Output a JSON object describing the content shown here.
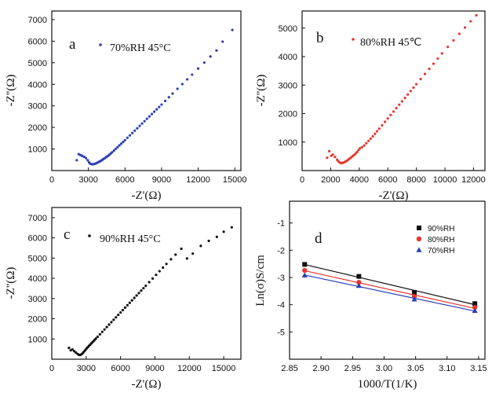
{
  "chart_data": [
    {
      "panel_label": "a",
      "type": "scatter",
      "condition": "70%RH 45°C",
      "color": "#2b3fb5",
      "xlabel": "-Z'(Ω)",
      "ylabel": "-Z''(Ω)",
      "xlim": [
        0,
        15500
      ],
      "ylim": [
        0,
        7400
      ],
      "xticks": [
        0,
        3000,
        6000,
        9000,
        12000,
        15000
      ],
      "xtick_labels": [
        "0",
        "3000",
        "6000",
        "9000",
        "12000",
        "15000"
      ],
      "yticks": [
        1000,
        2000,
        3000,
        4000,
        5000,
        6000,
        7000
      ],
      "ytick_labels": [
        "1000",
        "2000",
        "3000",
        "4000",
        "5000",
        "6000",
        "7000"
      ],
      "x": [
        2050,
        2200,
        2350,
        2500,
        2650,
        2800,
        2950,
        3050,
        3150,
        3250,
        3350,
        3450,
        3550,
        3650,
        3750,
        3850,
        3950,
        4050,
        4150,
        4250,
        4350,
        4450,
        4550,
        4650,
        4750,
        4850,
        4950,
        5100,
        5250,
        5400,
        5550,
        5700,
        5850,
        6000,
        6200,
        6400,
        6600,
        6800,
        7000,
        7200,
        7400,
        7600,
        7800,
        8000,
        8200,
        8400,
        8600,
        8800,
        9000,
        9300,
        9600,
        9900,
        10300,
        10700,
        11100,
        11500,
        12000,
        12500,
        13000,
        13500,
        14000,
        14800
      ],
      "y": [
        480,
        760,
        720,
        680,
        640,
        580,
        480,
        380,
        320,
        300,
        290,
        300,
        320,
        340,
        370,
        400,
        430,
        460,
        500,
        540,
        580,
        620,
        660,
        700,
        750,
        800,
        850,
        930,
        1010,
        1090,
        1170,
        1250,
        1330,
        1410,
        1520,
        1630,
        1740,
        1850,
        1960,
        2070,
        2180,
        2290,
        2400,
        2510,
        2620,
        2730,
        2840,
        2950,
        3060,
        3230,
        3400,
        3570,
        3790,
        4010,
        4230,
        4450,
        4730,
        5010,
        5290,
        5570,
        5980,
        6520
      ]
    },
    {
      "panel_label": "b",
      "type": "scatter",
      "condition": "80%RH 45℃",
      "color": "#e8362e",
      "xlabel": "-Z'(Ω)",
      "ylabel": "-Z''(Ω)",
      "xlim": [
        0,
        12800
      ],
      "ylim": [
        0,
        5600
      ],
      "xticks": [
        0,
        2000,
        4000,
        6000,
        8000,
        10000,
        12000
      ],
      "xtick_labels": [
        "0",
        "2000",
        "4000",
        "6000",
        "8000",
        "10000",
        "12000"
      ],
      "yticks": [
        1000,
        2000,
        3000,
        4000,
        5000
      ],
      "ytick_labels": [
        "1000",
        "2000",
        "3000",
        "4000",
        "5000"
      ],
      "x": [
        1750,
        1900,
        2050,
        2150,
        2300,
        2450,
        2550,
        2650,
        2750,
        2850,
        2950,
        3050,
        3150,
        3250,
        3350,
        3450,
        3550,
        3650,
        3750,
        3850,
        3950,
        4050,
        4200,
        4350,
        4500,
        4650,
        4800,
        4950,
        5100,
        5250,
        5400,
        5600,
        5800,
        6000,
        6200,
        6400,
        6600,
        6800,
        7000,
        7200,
        7400,
        7600,
        7800,
        8000,
        8300,
        8600,
        8900,
        9200,
        9500,
        9800,
        10200,
        10600,
        11000,
        11400,
        11800,
        12200
      ],
      "y": [
        450,
        680,
        520,
        560,
        480,
        380,
        320,
        280,
        260,
        270,
        290,
        320,
        350,
        390,
        430,
        470,
        510,
        550,
        600,
        650,
        720,
        780,
        820,
        880,
        960,
        1040,
        1120,
        1200,
        1290,
        1380,
        1470,
        1590,
        1710,
        1830,
        1950,
        2070,
        2190,
        2310,
        2430,
        2550,
        2670,
        2790,
        2910,
        3030,
        3210,
        3390,
        3570,
        3750,
        3930,
        4110,
        4340,
        4570,
        4800,
        5020,
        5240,
        5450
      ]
    },
    {
      "panel_label": "c",
      "type": "scatter",
      "condition": "90%RH 45°C",
      "color": "#111111",
      "xlabel": "-Z'(Ω)",
      "ylabel": "-Z''(Ω)",
      "xlim": [
        0,
        16500
      ],
      "ylim": [
        0,
        7500
      ],
      "xticks": [
        0,
        3000,
        6000,
        9000,
        12000,
        15000
      ],
      "xtick_labels": [
        "0",
        "3000",
        "6000",
        "9000",
        "12000",
        "15000"
      ],
      "yticks": [
        1000,
        2000,
        3000,
        4000,
        5000,
        6000,
        7000
      ],
      "ytick_labels": [
        "1000",
        "2000",
        "3000",
        "4000",
        "5000",
        "6000",
        "7000"
      ],
      "x": [
        1500,
        1650,
        1800,
        1950,
        2100,
        2250,
        2350,
        2450,
        2550,
        2650,
        2750,
        2850,
        2950,
        3050,
        3150,
        3250,
        3350,
        3450,
        3550,
        3650,
        3750,
        3850,
        4000,
        4200,
        4400,
        4600,
        4800,
        5000,
        5200,
        5400,
        5600,
        5800,
        6000,
        6200,
        6400,
        6600,
        6800,
        7000,
        7200,
        7400,
        7600,
        7800,
        8000,
        8200,
        8500,
        8800,
        9100,
        9400,
        9700,
        10000,
        10400,
        10800,
        11300,
        11800,
        12300,
        13000,
        13700,
        14400,
        15000,
        15700
      ],
      "y": [
        560,
        440,
        480,
        400,
        330,
        260,
        220,
        210,
        230,
        270,
        330,
        400,
        470,
        540,
        600,
        660,
        720,
        780,
        840,
        900,
        960,
        1020,
        1110,
        1230,
        1350,
        1470,
        1590,
        1710,
        1830,
        1950,
        2070,
        2190,
        2310,
        2430,
        2550,
        2670,
        2790,
        2910,
        3030,
        3150,
        3270,
        3390,
        3510,
        3630,
        3810,
        3990,
        4170,
        4350,
        4530,
        4710,
        4940,
        5170,
        5460,
        4980,
        5220,
        5600,
        5850,
        6050,
        6300,
        6520
      ]
    },
    {
      "panel_label": "d",
      "type": "line",
      "xlabel": "1000/T(1/K)",
      "ylabel": "Ln(σ)S/cm",
      "xlim": [
        2.85,
        3.16
      ],
      "ylim": [
        -6.0,
        -0.2
      ],
      "xticks": [
        2.85,
        2.9,
        2.95,
        3.0,
        3.05,
        3.1,
        3.15
      ],
      "xtick_labels": [
        "2.85",
        "2.90",
        "2.95",
        "3.00",
        "3.05",
        "3.10",
        "3.15"
      ],
      "yticks": [
        -1,
        -2,
        -3,
        -4,
        -5
      ],
      "ytick_labels": [
        "-1",
        "-2",
        "-3",
        "-4",
        "-5"
      ],
      "legend_position": "top-right",
      "x": [
        2.874,
        2.96,
        3.048,
        3.144
      ],
      "series": [
        {
          "name": "90%RH",
          "color": "#111111",
          "marker": "square",
          "values": [
            -2.52,
            -2.96,
            -3.55,
            -3.96
          ]
        },
        {
          "name": "80%RH",
          "color": "#e8362e",
          "marker": "circle",
          "values": [
            -2.74,
            -3.18,
            -3.7,
            -4.1
          ]
        },
        {
          "name": "70%RH",
          "color": "#2b3fb5",
          "marker": "triangle",
          "values": [
            -2.92,
            -3.3,
            -3.8,
            -4.22
          ]
        }
      ]
    }
  ]
}
